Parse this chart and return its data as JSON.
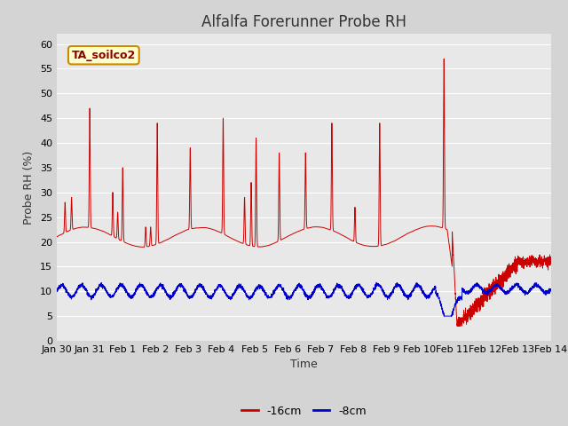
{
  "title": "Alfalfa Forerunner Probe RH",
  "ylabel": "Probe RH (%)",
  "xlabel": "Time",
  "ylim": [
    0,
    62
  ],
  "yticks": [
    0,
    5,
    10,
    15,
    20,
    25,
    30,
    35,
    40,
    45,
    50,
    55,
    60
  ],
  "xtick_labels": [
    "Jan 30",
    "Jan 31",
    "Feb 1",
    "Feb 2",
    "Feb 3",
    "Feb 4",
    "Feb 5",
    "Feb 6",
    "Feb 7",
    "Feb 8",
    "Feb 9",
    "Feb 10",
    "Feb 11",
    "Feb 12",
    "Feb 13",
    "Feb 14"
  ],
  "xtick_positions": [
    0,
    1,
    2,
    3,
    4,
    5,
    6,
    7,
    8,
    9,
    10,
    11,
    12,
    13,
    14,
    15
  ],
  "legend_label1": "-16cm",
  "legend_label2": "-8cm",
  "legend_color1": "#cc0000",
  "legend_color2": "#0000cc",
  "annotation_text": "TA_soilco2",
  "annotation_bg": "#ffffcc",
  "annotation_border": "#cc8800",
  "line1_color": "#cc0000",
  "line2_color": "#0000cc",
  "fig_bg": "#d4d4d4",
  "plot_bg": "#e8e8e8",
  "grid_color": "#ffffff",
  "title_color": "#333333",
  "title_fontsize": 12,
  "label_fontsize": 9,
  "tick_fontsize": 8
}
